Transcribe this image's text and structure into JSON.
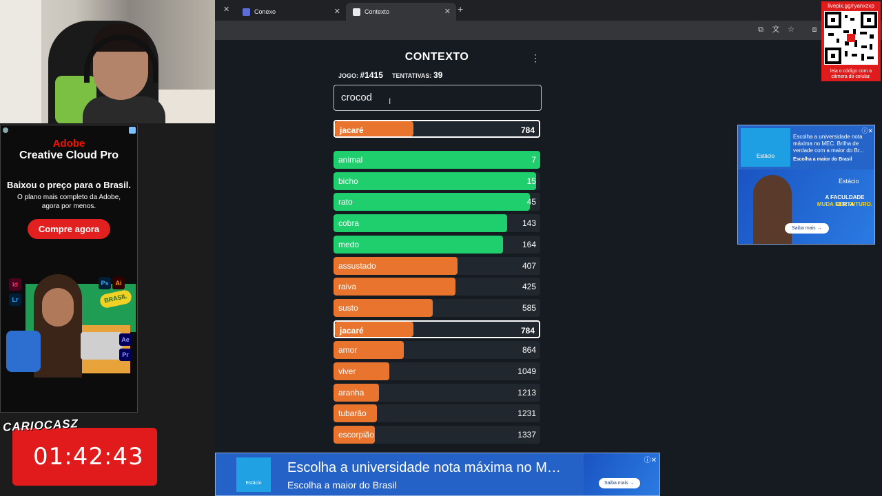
{
  "webcam": {
    "label": "webcam"
  },
  "browser": {
    "tabs": [
      {
        "label": "Conexo",
        "favicon_color": "#5b6fd6"
      },
      {
        "label": "Contexto",
        "favicon_color": "#e8eaed",
        "active": true
      }
    ]
  },
  "game": {
    "title": "CONTEXTO",
    "game_label": "JOGO:",
    "game_number": "#1415",
    "attempts_label": "TENTATIVAS:",
    "attempts": "39",
    "input_value": "crocod",
    "last_guess": {
      "word": "jacaré",
      "distance": "784",
      "fill_ratio": 0.38,
      "color": "#e8742e"
    },
    "guesses": [
      {
        "word": "animal",
        "distance": "7",
        "fill_ratio": 1.0,
        "color": "#1fcf6d"
      },
      {
        "word": "bicho",
        "distance": "15",
        "fill_ratio": 0.98,
        "color": "#1fcf6d"
      },
      {
        "word": "rato",
        "distance": "45",
        "fill_ratio": 0.95,
        "color": "#1fcf6d"
      },
      {
        "word": "cobra",
        "distance": "143",
        "fill_ratio": 0.84,
        "color": "#1fcf6d"
      },
      {
        "word": "medo",
        "distance": "164",
        "fill_ratio": 0.82,
        "color": "#1fcf6d"
      },
      {
        "word": "assustado",
        "distance": "407",
        "fill_ratio": 0.6,
        "color": "#e8742e"
      },
      {
        "word": "raiva",
        "distance": "425",
        "fill_ratio": 0.59,
        "color": "#e8742e"
      },
      {
        "word": "susto",
        "distance": "585",
        "fill_ratio": 0.48,
        "color": "#e8742e"
      },
      {
        "word": "jacaré",
        "distance": "784",
        "fill_ratio": 0.38,
        "color": "#e8742e",
        "highlight": true
      },
      {
        "word": "amor",
        "distance": "864",
        "fill_ratio": 0.34,
        "color": "#e8742e"
      },
      {
        "word": "viver",
        "distance": "1049",
        "fill_ratio": 0.27,
        "color": "#e8742e"
      },
      {
        "word": "aranha",
        "distance": "1213",
        "fill_ratio": 0.22,
        "color": "#e8742e"
      },
      {
        "word": "tubarão",
        "distance": "1231",
        "fill_ratio": 0.21,
        "color": "#e8742e"
      },
      {
        "word": "escorpião",
        "distance": "1337",
        "fill_ratio": 0.2,
        "color": "#e8742e"
      }
    ]
  },
  "ad_left": {
    "brand": "Adobe",
    "product": "Creative Cloud Pro",
    "headline": "Baixou o preço para o Brasil.",
    "sub_line1": "O plano mais completo da Adobe,",
    "sub_line2": "agora por menos.",
    "cta": "Compre agora",
    "apps": [
      "Id",
      "Lr",
      "Ps",
      "Ai",
      "Ae",
      "Pr"
    ],
    "badge": "BRASIL"
  },
  "qr": {
    "top": "livepix.gg/ryanxzxp",
    "bottom_line1": "leia o código com a",
    "bottom_line2": "câmera do celular."
  },
  "ad_right": {
    "logo": "Estácio",
    "text": "Escolha a universidade nota máxima no MEC. Brilha de verdade com a maior do Br...",
    "subtext": "Escolha a maior do Brasil",
    "brand": "Estácio",
    "big1": "A FACULDADE CERTA",
    "big2": "MUDA SEU FUTURO.",
    "button": "Saiba mais →"
  },
  "ad_bottom": {
    "logo": "Estácio",
    "line1": "Escolha a universidade nota máxima no M…",
    "line2": "Escolha a maior do Brasil",
    "button": "Saiba mais →"
  },
  "overlay": {
    "streamer": "CARIOCASZ",
    "timer": "01:42:43"
  }
}
